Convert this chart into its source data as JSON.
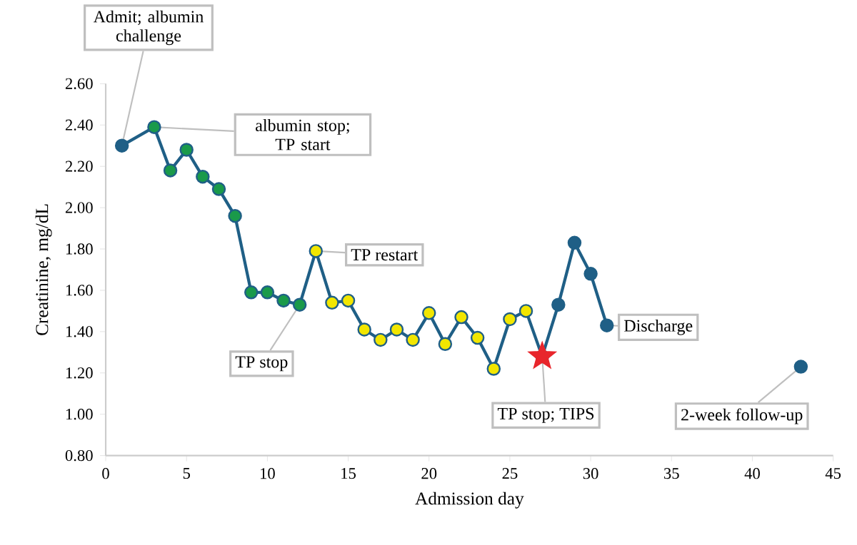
{
  "chart_data": {
    "type": "line",
    "xlabel": "Admission day",
    "ylabel": "Creatinine, mg/dL",
    "xlim": [
      0,
      45
    ],
    "xticks": [
      0,
      5,
      10,
      15,
      20,
      25,
      30,
      35,
      40,
      45
    ],
    "ylim": [
      0.8,
      2.6
    ],
    "yticks": [
      {
        "value": 0.8,
        "label": "0.80"
      },
      {
        "value": 1.0,
        "label": "1.00"
      },
      {
        "value": 1.2,
        "label": "1.20"
      },
      {
        "value": 1.4,
        "label": "1.40"
      },
      {
        "value": 1.6,
        "label": "1.60"
      },
      {
        "value": 1.8,
        "label": "1.80"
      },
      {
        "value": 2.0,
        "label": "2.00"
      },
      {
        "value": 2.2,
        "label": "2.20"
      },
      {
        "value": 2.4,
        "label": "2.40"
      },
      {
        "value": 2.6,
        "label": "2.60"
      }
    ],
    "marker": "circle",
    "series": [
      {
        "color": "#1f5f86",
        "x": [
          1,
          3,
          4,
          5,
          6,
          7,
          8,
          9,
          10,
          11,
          12,
          13,
          14,
          15,
          16,
          17,
          18,
          19,
          20,
          21,
          22,
          23,
          24,
          25,
          26,
          27,
          28,
          29,
          30,
          31
        ],
        "values": [
          2.3,
          2.39,
          2.18,
          2.28,
          2.15,
          2.09,
          1.96,
          1.59,
          1.59,
          1.55,
          1.53,
          1.79,
          1.54,
          1.55,
          1.41,
          1.36,
          1.41,
          1.36,
          1.49,
          1.34,
          1.47,
          1.37,
          1.22,
          1.46,
          1.5,
          1.28,
          1.53,
          1.83,
          1.68,
          1.43
        ],
        "colors": [
          "#1f5f86",
          "#1a9a4a",
          "#1a9a4a",
          "#1a9a4a",
          "#1a9a4a",
          "#1a9a4a",
          "#1a9a4a",
          "#1a9a4a",
          "#1a9a4a",
          "#1a9a4a",
          "#1a9a4a",
          "#f2e600",
          "#f2e600",
          "#f2e600",
          "#f2e600",
          "#f2e600",
          "#f2e600",
          "#f2e600",
          "#f2e600",
          "#f2e600",
          "#f2e600",
          "#f2e600",
          "#f2e600",
          "#f2e600",
          "#f2e600",
          "#1f5f86",
          "#1f5f86",
          "#1f5f86",
          "#1f5f86",
          "#1f5f86"
        ]
      },
      {
        "type": "scatter",
        "marker": "star",
        "color": "#e8262c",
        "x": [
          27
        ],
        "values": [
          1.28
        ]
      },
      {
        "type": "scatter",
        "marker": "circle",
        "color": "#1f5f86",
        "x": [
          43
        ],
        "values": [
          1.23
        ]
      }
    ],
    "annotations": [
      {
        "text": "Admit; albumin challenge",
        "x": 1,
        "y": 2.3
      },
      {
        "text": "albumin stop; TP start",
        "x": 3,
        "y": 2.39
      },
      {
        "text": "TP restart",
        "x": 13,
        "y": 1.79
      },
      {
        "text": "TP stop",
        "x": 12,
        "y": 1.53
      },
      {
        "text": "TP stop; TIPS",
        "x": 27,
        "y": 1.28
      },
      {
        "text": "Discharge",
        "x": 31,
        "y": 1.43
      },
      {
        "text": "2-week follow-up",
        "x": 43,
        "y": 1.23
      }
    ]
  }
}
